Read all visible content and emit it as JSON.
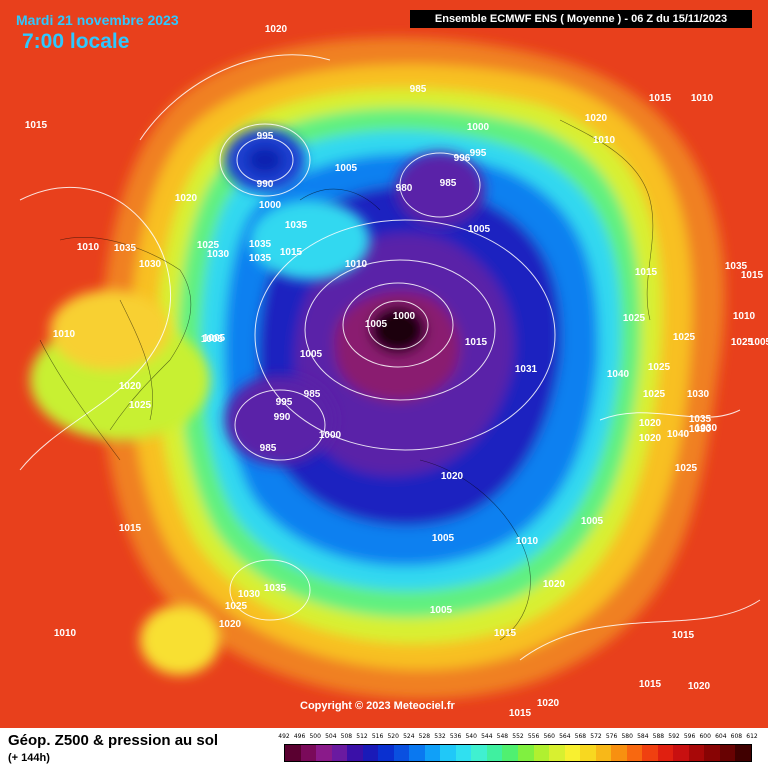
{
  "header": {
    "date": "Mardi 21 novembre 2023",
    "time": "7:00 locale",
    "run_info": "Ensemble ECMWF ENS  ( Moyenne )  -  06 Z du 15/11/2023"
  },
  "copyright": "Copyright © 2023 Meteociel.fr",
  "footer": {
    "title": "Géop. Z500 & pression au sol",
    "subtitle": "(+ 144h)"
  },
  "scale": {
    "labels": [
      "492",
      "496",
      "500",
      "504",
      "508",
      "512",
      "516",
      "520",
      "524",
      "528",
      "532",
      "536",
      "540",
      "544",
      "548",
      "552",
      "556",
      "560",
      "564",
      "568",
      "572",
      "576",
      "580",
      "584",
      "588",
      "592",
      "596",
      "600",
      "604",
      "608",
      "612"
    ],
    "colors": [
      "#5a0030",
      "#7a0a5a",
      "#8a1a8a",
      "#6a1aa0",
      "#3a10a8",
      "#1a1ab8",
      "#0a30d0",
      "#0a50e0",
      "#0a78f0",
      "#10a0f8",
      "#20c8f8",
      "#30e0f0",
      "#40f0d0",
      "#40f0a0",
      "#50f070",
      "#80f040",
      "#b0f030",
      "#d8f030",
      "#f8f030",
      "#f8d820",
      "#f8b818",
      "#f89010",
      "#f86810",
      "#f04010",
      "#e02010",
      "#c81010",
      "#a80808",
      "#880404",
      "#680202",
      "#400000"
    ]
  },
  "pressure_labels": {
    "values": [
      "1020",
      "1015",
      "1010",
      "985",
      "1000",
      "996",
      "995",
      "1015",
      "1010",
      "1020",
      "995",
      "990",
      "980",
      "985",
      "1005",
      "1000",
      "1020",
      "1010",
      "1005",
      "1035",
      "1035",
      "1030",
      "1025",
      "1030",
      "1035",
      "1035",
      "1010",
      "1015",
      "1015",
      "1025",
      "1010",
      "1000",
      "1005",
      "1005",
      "1015",
      "1010",
      "1035",
      "1005",
      "1031",
      "1025",
      "1040",
      "995",
      "990",
      "985",
      "1025",
      "1020",
      "1000",
      "1025",
      "1030",
      "1025",
      "1035",
      "1040",
      "1020",
      "1030",
      "1020",
      "1025",
      "985",
      "1020",
      "1015",
      "1005",
      "1005",
      "1010",
      "1005",
      "1035",
      "1030",
      "1025",
      "1020",
      "1010",
      "1020",
      "1005",
      "1015",
      "1015",
      "1015",
      "1020",
      "1020",
      "1015",
      "1005",
      "1015",
      "1025",
      "1030"
    ]
  },
  "legend_colors": {
    "low": "#2a0030",
    "mid": "#30e0f0",
    "high": "#e8401c",
    "isobar": "#ffffff"
  }
}
